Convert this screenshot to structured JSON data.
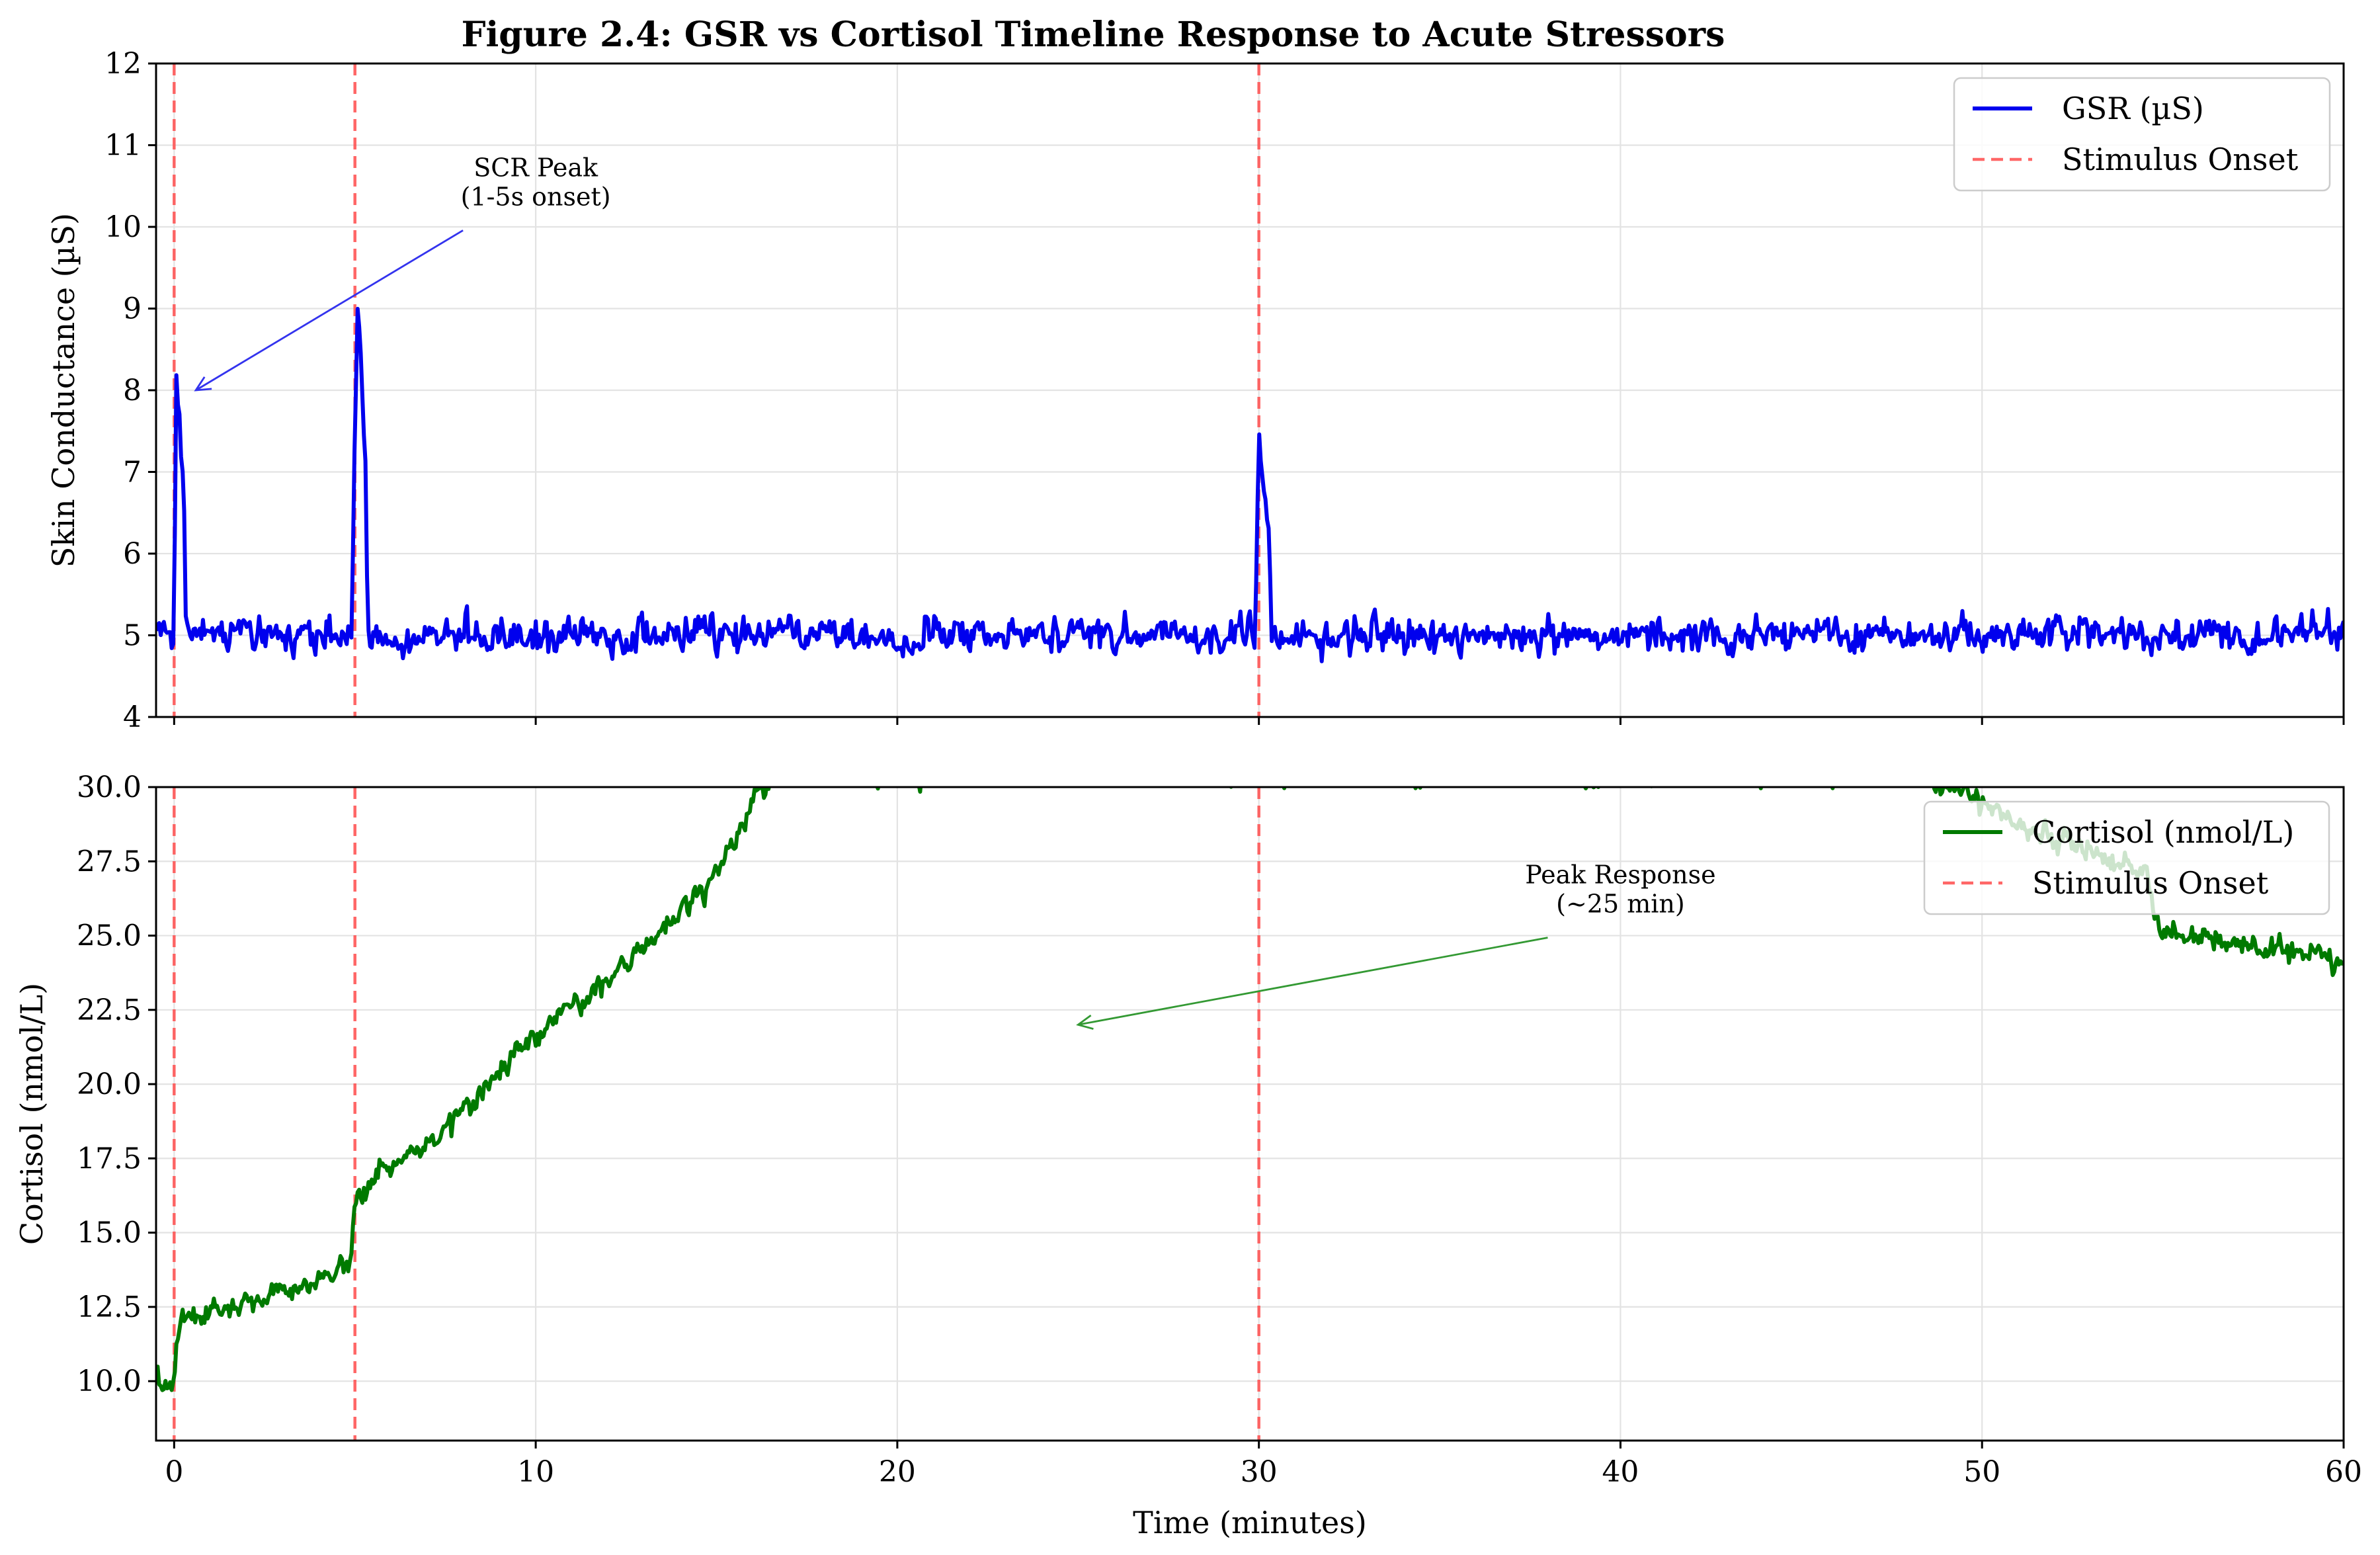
{
  "figure": {
    "title": "Figure 2.4: GSR vs Cortisol Timeline Response to Acute Stressors",
    "xlabel": "Time (minutes)"
  },
  "colors": {
    "gsr": "#0000ee",
    "cortisol": "#007a00",
    "stimulus": "#ff4d4d",
    "annotation_gsr": "#3333ee",
    "annotation_cortisol": "#339933"
  },
  "chart_data": [
    {
      "type": "line",
      "panel": "top",
      "ylabel": "Skin Conductance (µS)",
      "xlim": [
        -0.5,
        60
      ],
      "ylim": [
        4,
        12
      ],
      "xticks": [
        0,
        10,
        20,
        30,
        40,
        50,
        60
      ],
      "yticks": [
        4,
        5,
        6,
        7,
        8,
        9,
        10,
        11,
        12
      ],
      "ytick_labels": [
        "4",
        "5",
        "6",
        "7",
        "8",
        "9",
        "10",
        "11",
        "12"
      ],
      "grid": true,
      "legend": {
        "placement": "upper right",
        "entries": [
          "GSR (µS)",
          "Stimulus Onset"
        ]
      },
      "stimulus_onsets": [
        0,
        5,
        30
      ],
      "series": [
        {
          "name": "GSR (µS)",
          "baseline": 5.0,
          "noise_amplitude": 0.3,
          "x": [
            0,
            0.05,
            0.3,
            0.33,
            4.9,
            5.0,
            5.08,
            5.3,
            5.35,
            29.9,
            30.0,
            30.1,
            30.3,
            30.35
          ],
          "y": [
            5.0,
            8.25,
            6.5,
            5.0,
            5.0,
            7.5,
            9.05,
            7.0,
            5.0,
            5.0,
            7.45,
            7.0,
            6.1,
            5.0
          ]
        }
      ],
      "annotations": [
        {
          "text_lines": [
            "SCR Peak",
            "(1-5s onset)"
          ],
          "text_x": 10.0,
          "text_y": 10.2,
          "arrow_to_x": 0.6,
          "arrow_to_y": 8.0
        }
      ]
    },
    {
      "type": "line",
      "panel": "bottom",
      "ylabel": "Cortisol (nmol/L)",
      "xlim": [
        -0.5,
        60
      ],
      "ylim": [
        8,
        30
      ],
      "xticks": [
        0,
        10,
        20,
        30,
        40,
        50,
        60
      ],
      "xtick_labels": [
        "0",
        "10",
        "20",
        "30",
        "40",
        "50",
        "60"
      ],
      "yticks": [
        10,
        12.5,
        15,
        17.5,
        20,
        22.5,
        25,
        27.5,
        30
      ],
      "ytick_labels": [
        "10.0",
        "12.5",
        "15.0",
        "17.5",
        "20.0",
        "22.5",
        "25.0",
        "27.5",
        "30.0"
      ],
      "grid": true,
      "legend": {
        "placement": "upper right",
        "entries": [
          "Cortisol (nmol/L)",
          "Stimulus Onset"
        ]
      },
      "stimulus_onsets": [
        0,
        5,
        30
      ],
      "series": [
        {
          "name": "Cortisol (nmol/L)",
          "noise_amplitude": 0.6,
          "x": [
            -0.5,
            0,
            0.1,
            1,
            2,
            3,
            4,
            4.9,
            5,
            5.5,
            6,
            7,
            8,
            9,
            10,
            11,
            12,
            13,
            14,
            15,
            15.5,
            16,
            16.5,
            48,
            49,
            50,
            51,
            52,
            53,
            54,
            54.5,
            55,
            56,
            57,
            58,
            59,
            60
          ],
          "y": [
            10.0,
            10.0,
            12.0,
            12.3,
            12.6,
            13.0,
            13.3,
            14.2,
            16.0,
            16.8,
            17.3,
            18.0,
            19.0,
            20.3,
            21.6,
            22.6,
            23.6,
            24.6,
            25.6,
            27.1,
            28.3,
            29.4,
            30.5,
            30.5,
            30.0,
            29.5,
            28.7,
            28.2,
            27.9,
            27.4,
            27.1,
            25.0,
            25.0,
            24.8,
            24.6,
            24.4,
            24.0
          ]
        }
      ],
      "annotations": [
        {
          "text_lines": [
            "Peak Response",
            "(~25 min)"
          ],
          "text_x": 40.0,
          "text_y": 25.6,
          "arrow_to_x": 25.0,
          "arrow_to_y": 22.0
        }
      ]
    }
  ]
}
